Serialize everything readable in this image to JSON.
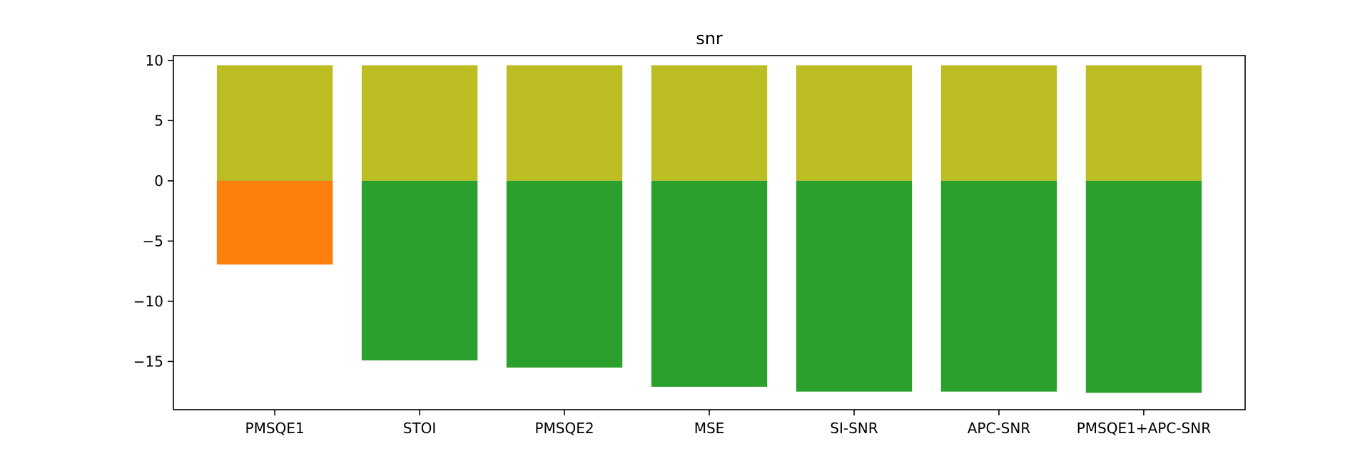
{
  "chart_data": {
    "type": "bar",
    "title": "snr",
    "xlabel": "",
    "ylabel": "",
    "categories": [
      "PMSQE1",
      "STOI",
      "PMSQE2",
      "MSE",
      "SI-SNR",
      "APC-SNR",
      "PMSQE1+APC-SNR"
    ],
    "ylim": [
      -19,
      10.4
    ],
    "yticks": [
      10,
      5,
      0,
      -5,
      -10,
      -15
    ],
    "ytick_labels": [
      "10",
      "5",
      "0",
      "−5",
      "−10",
      "−15"
    ],
    "grid": false,
    "series": [
      {
        "values": [
          9.6,
          9.6,
          9.6,
          9.6,
          9.6,
          9.6,
          9.6
        ],
        "color": "#bcbd22"
      },
      {
        "values": [
          -6.8,
          -14.9,
          -15.5,
          -17.1,
          -17.5,
          -17.5,
          -17.6
        ],
        "color": "#2ca02c"
      },
      {
        "values": [
          -6.95,
          null,
          null,
          null,
          null,
          null,
          null
        ],
        "color": "#ff7f0e"
      }
    ]
  }
}
